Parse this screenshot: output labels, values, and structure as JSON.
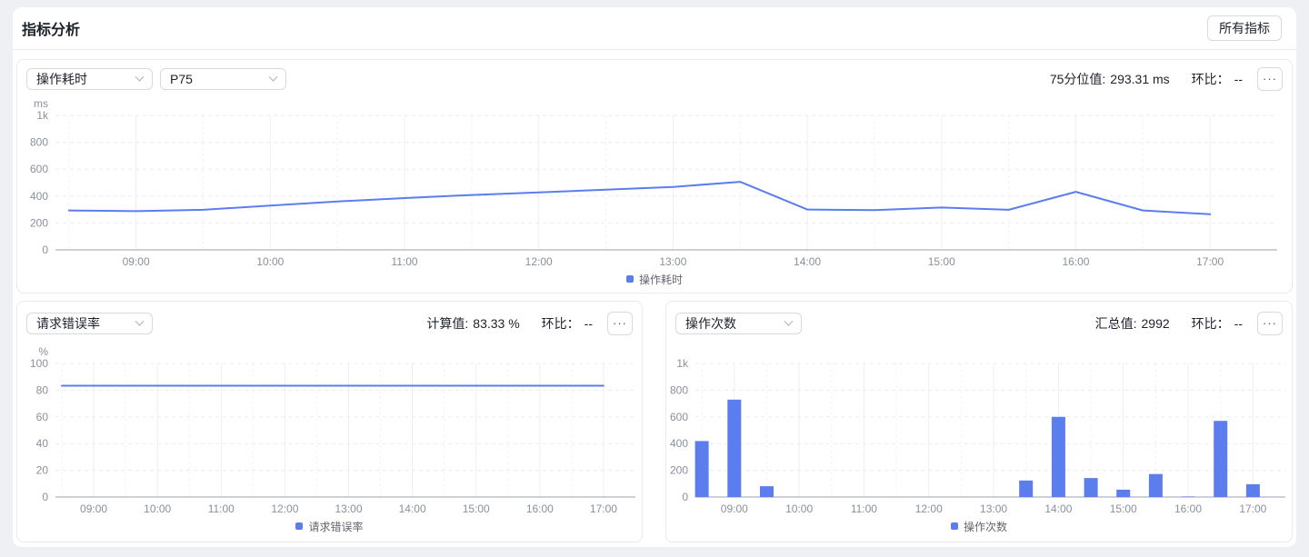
{
  "page": {
    "title": "指标分析",
    "all_metrics_button": "所有指标",
    "accent_color": "#5b7dee",
    "background_color": "#eef0f3"
  },
  "cards": [
    {
      "selects": [
        {
          "value": "操作耗时"
        },
        {
          "value": "P75"
        }
      ],
      "stats": [
        {
          "label": "75分位值:",
          "value": "293.31 ms"
        },
        {
          "label": "环比：",
          "value": "--"
        }
      ],
      "more_icon": "···"
    },
    {
      "selects": [
        {
          "value": "请求错误率"
        }
      ],
      "stats": [
        {
          "label": "计算值:",
          "value": "83.33 %"
        },
        {
          "label": "环比：",
          "value": "--"
        }
      ],
      "more_icon": "···"
    },
    {
      "selects": [
        {
          "value": "操作次数"
        }
      ],
      "stats": [
        {
          "label": "汇总值:",
          "value": "2992"
        },
        {
          "label": "环比：",
          "value": "--"
        }
      ],
      "more_icon": "···"
    }
  ],
  "chart_data": [
    {
      "type": "line",
      "title": "操作耗时",
      "legend": "操作耗时",
      "unit": "ms",
      "color": "#5b7dee",
      "x": [
        "08:30",
        "09:00",
        "09:30",
        "10:00",
        "10:30",
        "11:00",
        "11:30",
        "12:00",
        "12:30",
        "13:00",
        "13:30",
        "14:00",
        "14:30",
        "15:00",
        "15:30",
        "16:00",
        "16:30",
        "17:00"
      ],
      "values": [
        293,
        288,
        298,
        330,
        360,
        385,
        408,
        428,
        448,
        468,
        506,
        300,
        295,
        315,
        298,
        432,
        293,
        265
      ],
      "ylim": [
        0,
        1000
      ],
      "yticks": {
        "values": [
          0,
          200,
          400,
          600,
          800,
          1000
        ],
        "labels": [
          "0",
          "200",
          "400",
          "600",
          "800",
          "1k"
        ]
      },
      "xticks": [
        "09:00",
        "10:00",
        "11:00",
        "12:00",
        "13:00",
        "14:00",
        "15:00",
        "16:00",
        "17:00"
      ],
      "grid": true,
      "legend_position": "bottom"
    },
    {
      "type": "line",
      "title": "请求错误率",
      "legend": "请求错误率",
      "unit": "%",
      "color": "#5b7dee",
      "x": [
        "08:30",
        "09:00",
        "09:30",
        "10:00",
        "10:30",
        "11:00",
        "11:30",
        "12:00",
        "12:30",
        "13:00",
        "13:30",
        "14:00",
        "14:30",
        "15:00",
        "15:30",
        "16:00",
        "16:30",
        "17:00"
      ],
      "values": [
        83.33,
        83.33,
        83.33,
        83.33,
        83.33,
        83.33,
        83.33,
        83.33,
        83.33,
        83.33,
        83.33,
        83.33,
        83.33,
        83.33,
        83.33,
        83.33,
        83.33,
        83.33
      ],
      "ylim": [
        0,
        100
      ],
      "yticks": {
        "values": [
          0,
          20,
          40,
          60,
          80,
          100
        ],
        "labels": [
          "0",
          "20",
          "40",
          "60",
          "80",
          "100"
        ]
      },
      "xticks": [
        "09:00",
        "10:00",
        "11:00",
        "12:00",
        "13:00",
        "14:00",
        "15:00",
        "16:00",
        "17:00"
      ],
      "grid": true,
      "legend_position": "bottom"
    },
    {
      "type": "bar",
      "title": "操作次数",
      "legend": "操作次数",
      "unit": "",
      "color": "#5b7dee",
      "x": [
        "08:30",
        "09:00",
        "09:30",
        "10:00",
        "10:30",
        "11:00",
        "11:30",
        "12:00",
        "12:30",
        "13:00",
        "13:30",
        "14:00",
        "14:30",
        "15:00",
        "15:30",
        "16:00",
        "16:30",
        "17:00"
      ],
      "values": [
        419,
        729,
        81,
        0,
        0,
        0,
        0,
        0,
        0,
        0,
        124,
        600,
        142,
        55,
        172,
        4,
        570,
        96
      ],
      "ylim": [
        0,
        1000
      ],
      "yticks": {
        "values": [
          0,
          200,
          400,
          600,
          800,
          1000
        ],
        "labels": [
          "0",
          "200",
          "400",
          "600",
          "800",
          "1k"
        ]
      },
      "xticks": [
        "09:00",
        "10:00",
        "11:00",
        "12:00",
        "13:00",
        "14:00",
        "15:00",
        "16:00",
        "17:00"
      ],
      "grid": true,
      "legend_position": "bottom"
    }
  ]
}
